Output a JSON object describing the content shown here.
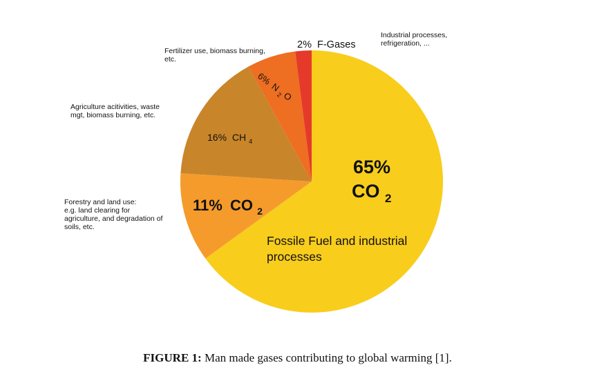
{
  "chart_data": {
    "type": "pie",
    "categories": [
      "Fossile Fuel and industrial processes",
      "Forestry and land use",
      "Agriculture",
      "Fertilizer use",
      "Industrial processes"
    ],
    "values": [
      65,
      11,
      16,
      6,
      2
    ],
    "colors": [
      "#F8CD1C",
      "#F59B2C",
      "#C9852A",
      "#EE6E22",
      "#E53A2A"
    ],
    "slices": [
      {
        "value": 65,
        "pct_label": "65%",
        "gas": "CO",
        "sub": "2",
        "desc": "Fossile Fuel and industrial processes",
        "color": "#F8CD1C"
      },
      {
        "value": 11,
        "pct_label": "11%",
        "gas": "CO",
        "sub": "2",
        "note": "Forestry and land use: e.g. land clearing for agriculture, and degradation of soils, etc.",
        "color": "#F59B2C"
      },
      {
        "value": 16,
        "pct_label": "16%",
        "gas": "CH",
        "sub": "4",
        "note": "Agriculture acitivities, waste mgt, biomass burning, etc.",
        "color": "#C9852A"
      },
      {
        "value": 6,
        "pct_label": "6%",
        "gas": "N",
        "sub": "2",
        "gas_after": "O",
        "note": "Fertilizer use, biomass burning, etc.",
        "color": "#EE6E22"
      },
      {
        "value": 2,
        "pct_label": "2%",
        "gas": "F-Gases",
        "note": "Industrial processes, refrigeration, ...",
        "color": "#E53A2A"
      }
    ],
    "annotations": {
      "forestry": [
        "Forestry and land use:",
        "e.g. land clearing for",
        "agriculture, and degradation of",
        "soils, etc."
      ],
      "agriculture": [
        "Agriculture acitivities, waste",
        "mgt, biomass burning, etc."
      ],
      "fertilizer": [
        "Fertilizer use, biomass burning,",
        "etc."
      ],
      "industrial": [
        "Industrial processes,",
        "refrigeration, ..."
      ]
    },
    "fossil_desc_lines": [
      "Fossile Fuel and industrial",
      "processes"
    ]
  },
  "caption": {
    "bold": "FIGURE 1:",
    "text": " Man made gases contributing to global warming [1]."
  }
}
